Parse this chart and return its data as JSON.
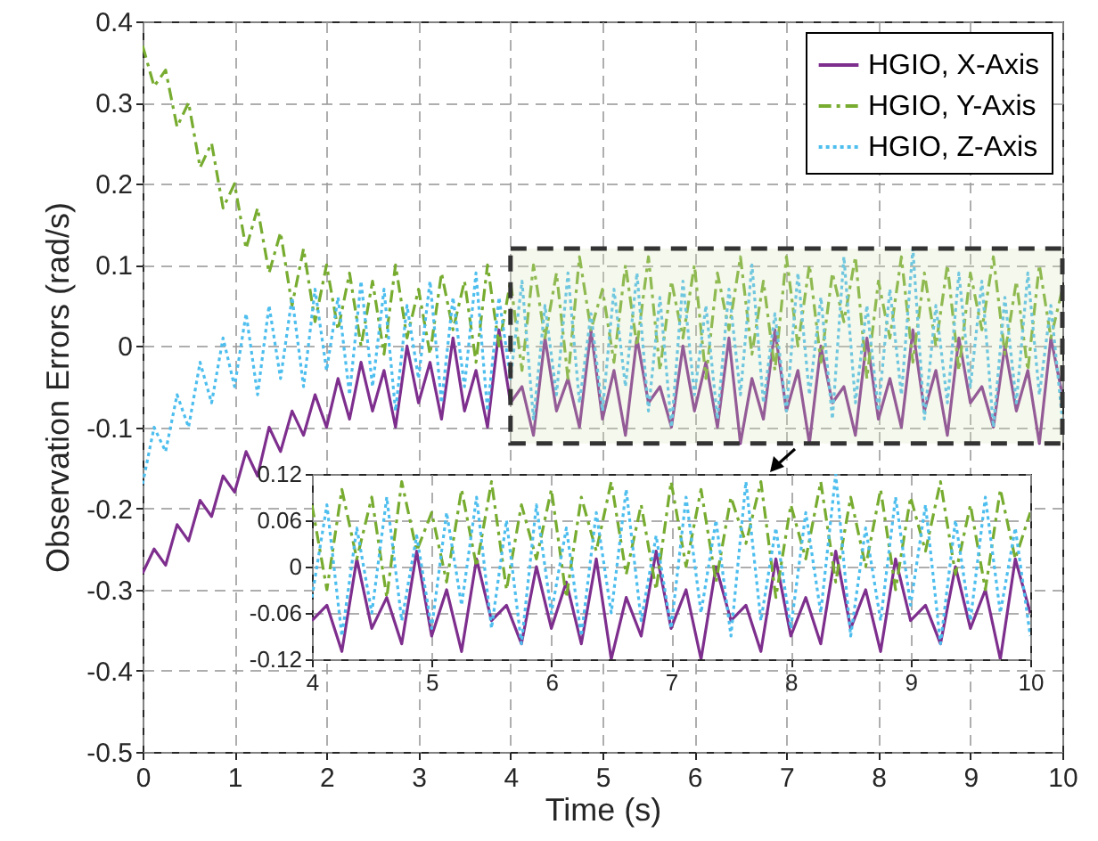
{
  "chart_data": [
    {
      "type": "line",
      "xlabel": "Time (s)",
      "ylabel": "Observation Errors (rad/s)",
      "xlim": [
        0,
        10
      ],
      "ylim": [
        -0.5,
        0.4
      ],
      "xticks": [
        0,
        1,
        2,
        3,
        4,
        5,
        6,
        7,
        8,
        9,
        10
      ],
      "yticks": [
        -0.5,
        -0.4,
        -0.3,
        -0.2,
        -0.1,
        0,
        0.1,
        0.2,
        0.3,
        0.4
      ],
      "grid": true,
      "legend": "top right",
      "x": [
        0,
        0.125,
        0.25,
        0.375,
        0.5,
        0.625,
        0.75,
        0.875,
        1,
        1.125,
        1.25,
        1.375,
        1.5,
        1.625,
        1.75,
        1.875,
        2,
        2.125,
        2.25,
        2.375,
        2.5,
        2.625,
        2.75,
        2.875,
        3,
        3.125,
        3.25,
        3.375,
        3.5,
        3.625,
        3.75,
        3.875,
        4,
        4.125,
        4.25,
        4.375,
        4.5,
        4.625,
        4.75,
        4.875,
        5,
        5.125,
        5.25,
        5.375,
        5.5,
        5.625,
        5.75,
        5.875,
        6,
        6.125,
        6.25,
        6.375,
        6.5,
        6.625,
        6.75,
        6.875,
        7,
        7.125,
        7.25,
        7.375,
        7.5,
        7.625,
        7.75,
        7.875,
        8,
        8.125,
        8.25,
        8.375,
        8.5,
        8.625,
        8.75,
        8.875,
        9,
        9.125,
        9.25,
        9.375,
        9.5,
        9.625,
        9.75,
        9.875,
        10
      ],
      "series": [
        {
          "name": "HGIO, X-Axis",
          "color": "#7e2f8e",
          "line_style": "solid",
          "values": [
            -0.28,
            -0.25,
            -0.27,
            -0.22,
            -0.24,
            -0.19,
            -0.21,
            -0.16,
            -0.18,
            -0.13,
            -0.16,
            -0.1,
            -0.13,
            -0.08,
            -0.11,
            -0.06,
            -0.1,
            -0.04,
            -0.09,
            -0.02,
            -0.08,
            -0.03,
            -0.1,
            0.0,
            -0.07,
            -0.02,
            -0.09,
            0.01,
            -0.08,
            -0.03,
            -0.1,
            0.02,
            -0.07,
            -0.05,
            -0.11,
            0.01,
            -0.08,
            -0.04,
            -0.1,
            0.02,
            -0.09,
            -0.03,
            -0.11,
            0.01,
            -0.07,
            -0.05,
            -0.1,
            0.0,
            -0.08,
            -0.02,
            -0.1,
            0.01,
            -0.12,
            -0.04,
            -0.09,
            0.02,
            -0.08,
            -0.03,
            -0.12,
            0.0,
            -0.07,
            -0.05,
            -0.11,
            0.01,
            -0.09,
            -0.04,
            -0.1,
            0.02,
            -0.08,
            -0.03,
            -0.11,
            0.01,
            -0.07,
            -0.05,
            -0.1,
            0.0,
            -0.08,
            -0.03,
            -0.12,
            0.01,
            -0.06
          ]
        },
        {
          "name": "HGIO, Y-Axis",
          "color": "#77ac30",
          "line_style": "dashed",
          "values": [
            0.37,
            0.32,
            0.34,
            0.27,
            0.3,
            0.22,
            0.25,
            0.17,
            0.2,
            0.12,
            0.17,
            0.09,
            0.14,
            0.05,
            0.12,
            0.03,
            0.1,
            0.02,
            0.09,
            0.0,
            0.08,
            -0.01,
            0.1,
            0.01,
            0.07,
            -0.01,
            0.09,
            0.02,
            0.08,
            -0.02,
            0.1,
            0.0,
            0.08,
            -0.03,
            0.1,
            0.01,
            0.09,
            -0.04,
            0.11,
            0.02,
            0.07,
            -0.02,
            0.1,
            0.0,
            0.11,
            -0.03,
            0.08,
            0.01,
            0.1,
            -0.04,
            0.09,
            0.02,
            0.11,
            -0.01,
            0.08,
            -0.03,
            0.11,
            0.0,
            0.1,
            -0.02,
            0.09,
            0.03,
            0.11,
            -0.04,
            0.08,
            0.01,
            0.11,
            -0.02,
            0.09,
            0.0,
            0.1,
            -0.03,
            0.09,
            0.02,
            0.11,
            -0.01,
            0.08,
            -0.03,
            0.1,
            0.01,
            0.07
          ]
        },
        {
          "name": "HGIO, Z-Axis",
          "color": "#4dbeee",
          "line_style": "dotted",
          "values": [
            -0.17,
            -0.1,
            -0.13,
            -0.06,
            -0.1,
            -0.02,
            -0.07,
            0.01,
            -0.05,
            0.04,
            -0.06,
            0.05,
            -0.04,
            0.06,
            -0.05,
            0.07,
            -0.03,
            0.06,
            -0.06,
            0.08,
            -0.05,
            0.07,
            -0.08,
            0.05,
            -0.04,
            0.08,
            -0.07,
            0.06,
            -0.05,
            0.09,
            -0.08,
            0.06,
            -0.04,
            0.08,
            -0.09,
            0.05,
            -0.06,
            0.09,
            -0.07,
            0.04,
            -0.08,
            0.07,
            -0.05,
            0.09,
            -0.08,
            0.06,
            -0.1,
            0.08,
            -0.06,
            0.05,
            -0.09,
            0.07,
            -0.06,
            0.1,
            -0.07,
            0.04,
            -0.08,
            0.09,
            -0.06,
            0.06,
            -0.09,
            0.11,
            -0.07,
            0.05,
            -0.08,
            0.07,
            -0.06,
            0.12,
            -0.09,
            0.05,
            -0.07,
            0.09,
            -0.05,
            0.08,
            -0.1,
            0.06,
            -0.07,
            0.09,
            -0.06,
            0.05,
            -0.09
          ]
        }
      ]
    },
    {
      "type": "line",
      "xlim": [
        4,
        10
      ],
      "ylim": [
        -0.12,
        0.12
      ],
      "xticks": [
        4,
        5,
        6,
        7,
        8,
        9,
        10
      ],
      "yticks": [
        -0.12,
        -0.06,
        0,
        0.06,
        0.12
      ],
      "grid": true,
      "x": [
        4,
        4.125,
        4.25,
        4.375,
        4.5,
        4.625,
        4.75,
        4.875,
        5,
        5.125,
        5.25,
        5.375,
        5.5,
        5.625,
        5.75,
        5.875,
        6,
        6.125,
        6.25,
        6.375,
        6.5,
        6.625,
        6.75,
        6.875,
        7,
        7.125,
        7.25,
        7.375,
        7.5,
        7.625,
        7.75,
        7.875,
        8,
        8.125,
        8.25,
        8.375,
        8.5,
        8.625,
        8.75,
        8.875,
        9,
        9.125,
        9.25,
        9.375,
        9.5,
        9.625,
        9.75,
        9.875,
        10
      ],
      "series": [
        {
          "color": "#7e2f8e",
          "line_style": "solid",
          "values": [
            -0.07,
            -0.05,
            -0.11,
            0.01,
            -0.08,
            -0.04,
            -0.1,
            0.02,
            -0.09,
            -0.03,
            -0.11,
            0.01,
            -0.07,
            -0.05,
            -0.1,
            0.0,
            -0.08,
            -0.02,
            -0.1,
            0.01,
            -0.12,
            -0.04,
            -0.09,
            0.02,
            -0.08,
            -0.03,
            -0.12,
            0.0,
            -0.07,
            -0.05,
            -0.11,
            0.01,
            -0.09,
            -0.04,
            -0.1,
            0.02,
            -0.08,
            -0.03,
            -0.11,
            0.01,
            -0.07,
            -0.05,
            -0.1,
            0.0,
            -0.08,
            -0.03,
            -0.12,
            0.01,
            -0.06
          ]
        },
        {
          "color": "#77ac30",
          "line_style": "dashed",
          "values": [
            0.08,
            -0.03,
            0.1,
            0.01,
            0.09,
            -0.04,
            0.11,
            0.02,
            0.07,
            -0.02,
            0.1,
            0.0,
            0.11,
            -0.03,
            0.08,
            0.01,
            0.1,
            -0.04,
            0.09,
            0.02,
            0.11,
            -0.01,
            0.08,
            -0.03,
            0.11,
            0.0,
            0.1,
            -0.02,
            0.09,
            0.03,
            0.11,
            -0.04,
            0.08,
            0.01,
            0.11,
            -0.02,
            0.09,
            0.0,
            0.1,
            -0.03,
            0.09,
            0.02,
            0.11,
            -0.01,
            0.08,
            -0.03,
            0.1,
            0.01,
            0.07
          ]
        },
        {
          "color": "#4dbeee",
          "line_style": "dotted",
          "values": [
            -0.04,
            0.08,
            -0.09,
            0.05,
            -0.06,
            0.09,
            -0.07,
            0.04,
            -0.08,
            0.07,
            -0.05,
            0.09,
            -0.08,
            0.06,
            -0.1,
            0.08,
            -0.06,
            0.05,
            -0.09,
            0.07,
            -0.06,
            0.1,
            -0.07,
            0.04,
            -0.08,
            0.09,
            -0.06,
            0.06,
            -0.09,
            0.11,
            -0.07,
            0.05,
            -0.08,
            0.07,
            -0.06,
            0.12,
            -0.09,
            0.05,
            -0.07,
            0.09,
            -0.05,
            0.08,
            -0.1,
            0.06,
            -0.07,
            0.09,
            -0.06,
            0.05,
            -0.09
          ]
        }
      ]
    }
  ]
}
